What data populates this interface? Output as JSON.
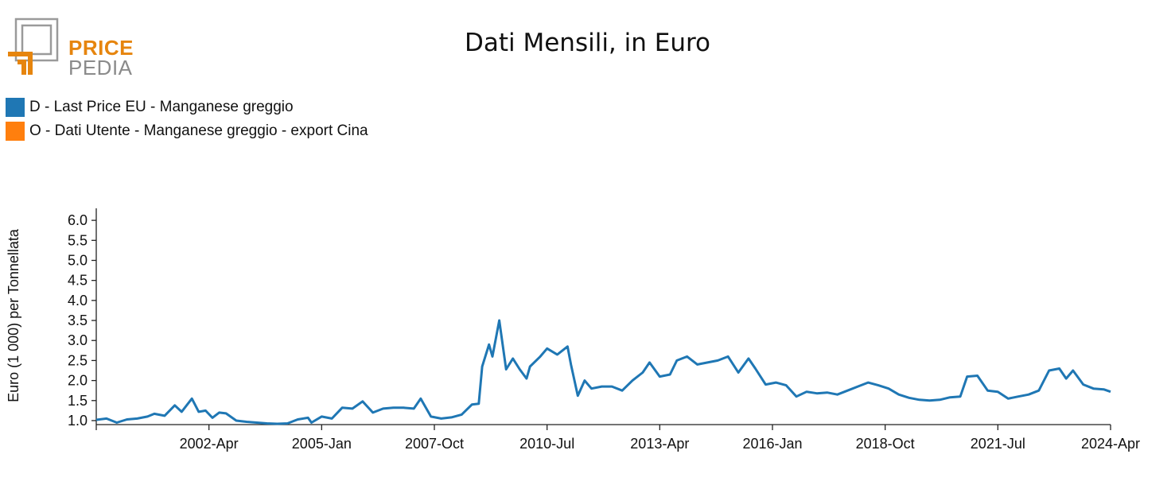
{
  "logo": {
    "line1": "PRICE",
    "line2": "PEDIA"
  },
  "colors": {
    "series_blue": "#1f77b4",
    "series_orange": "#ff7f0e",
    "logo_orange": "#e6850e",
    "logo_gray": "#8b8b8b"
  },
  "chart_data": {
    "type": "line",
    "title": "Dati Mensili, in Euro",
    "xlabel": "",
    "ylabel": "Euro (1 000) per Tonnellata",
    "x_start": "1999-07",
    "x_end": "2024-04",
    "x_ticks": [
      "2002-Apr",
      "2005-Jan",
      "2007-Oct",
      "2010-Jul",
      "2013-Apr",
      "2016-Jan",
      "2018-Oct",
      "2021-Jul",
      "2024-Apr"
    ],
    "y_ticks": [
      "1.0",
      "1.5",
      "2.0",
      "2.5",
      "3.0",
      "3.5",
      "4.0",
      "4.5",
      "5.0",
      "5.5",
      "6.0"
    ],
    "ylim": [
      0.9,
      6.3
    ],
    "legend_position": "top-left",
    "grid": false,
    "series": [
      {
        "name": "D - Last Price EU - Manganese greggio",
        "color": "#1f77b4",
        "points": [
          [
            "1999-07",
            1.02
          ],
          [
            "1999-10",
            1.05
          ],
          [
            "2000-01",
            0.95
          ],
          [
            "2000-04",
            1.03
          ],
          [
            "2000-07",
            1.05
          ],
          [
            "2000-10",
            1.1
          ],
          [
            "2000-12",
            1.17
          ],
          [
            "2001-03",
            1.12
          ],
          [
            "2001-06",
            1.38
          ],
          [
            "2001-08",
            1.22
          ],
          [
            "2001-11",
            1.55
          ],
          [
            "2002-01",
            1.22
          ],
          [
            "2002-03",
            1.25
          ],
          [
            "2002-05",
            1.07
          ],
          [
            "2002-07",
            1.2
          ],
          [
            "2002-09",
            1.18
          ],
          [
            "2002-12",
            1.0
          ],
          [
            "2003-03",
            0.97
          ],
          [
            "2003-06",
            0.95
          ],
          [
            "2003-09",
            0.93
          ],
          [
            "2003-12",
            0.92
          ],
          [
            "2004-03",
            0.93
          ],
          [
            "2004-06",
            1.03
          ],
          [
            "2004-09",
            1.07
          ],
          [
            "2004-10",
            0.95
          ],
          [
            "2005-01",
            1.1
          ],
          [
            "2005-04",
            1.05
          ],
          [
            "2005-07",
            1.32
          ],
          [
            "2005-10",
            1.3
          ],
          [
            "2006-01",
            1.48
          ],
          [
            "2006-04",
            1.2
          ],
          [
            "2006-07",
            1.3
          ],
          [
            "2006-10",
            1.32
          ],
          [
            "2007-01",
            1.32
          ],
          [
            "2007-04",
            1.3
          ],
          [
            "2007-06",
            1.55
          ],
          [
            "2007-09",
            1.1
          ],
          [
            "2007-12",
            1.05
          ],
          [
            "2008-03",
            1.08
          ],
          [
            "2008-06",
            1.15
          ],
          [
            "2008-09",
            1.4
          ],
          [
            "2008-11",
            1.42
          ],
          [
            "2008-12",
            2.35
          ],
          [
            "2009-02",
            2.9
          ],
          [
            "2009-03",
            2.6
          ],
          [
            "2009-05",
            3.5
          ],
          [
            "2009-07",
            2.28
          ],
          [
            "2009-09",
            2.55
          ],
          [
            "2009-11",
            2.28
          ],
          [
            "2010-01",
            2.05
          ],
          [
            "2010-02",
            2.35
          ],
          [
            "2010-05",
            2.6
          ],
          [
            "2010-07",
            2.8
          ],
          [
            "2010-10",
            2.65
          ],
          [
            "2011-01",
            2.85
          ],
          [
            "2011-02",
            2.4
          ],
          [
            "2011-04",
            1.62
          ],
          [
            "2011-06",
            2.0
          ],
          [
            "2011-08",
            1.8
          ],
          [
            "2011-11",
            1.85
          ],
          [
            "2012-02",
            1.85
          ],
          [
            "2012-05",
            1.75
          ],
          [
            "2012-08",
            2.0
          ],
          [
            "2012-11",
            2.2
          ],
          [
            "2013-01",
            2.45
          ],
          [
            "2013-04",
            2.1
          ],
          [
            "2013-07",
            2.15
          ],
          [
            "2013-09",
            2.5
          ],
          [
            "2013-12",
            2.6
          ],
          [
            "2014-03",
            2.4
          ],
          [
            "2014-06",
            2.45
          ],
          [
            "2014-09",
            2.5
          ],
          [
            "2014-12",
            2.6
          ],
          [
            "2015-03",
            2.2
          ],
          [
            "2015-06",
            2.55
          ],
          [
            "2015-08",
            2.3
          ],
          [
            "2015-11",
            1.9
          ],
          [
            "2016-02",
            1.95
          ],
          [
            "2016-05",
            1.88
          ],
          [
            "2016-08",
            1.6
          ],
          [
            "2016-11",
            1.72
          ],
          [
            "2017-02",
            1.68
          ],
          [
            "2017-05",
            1.7
          ],
          [
            "2017-08",
            1.65
          ],
          [
            "2017-11",
            1.75
          ],
          [
            "2018-02",
            1.85
          ],
          [
            "2018-05",
            1.95
          ],
          [
            "2018-08",
            1.88
          ],
          [
            "2018-11",
            1.8
          ],
          [
            "2019-02",
            1.65
          ],
          [
            "2019-05",
            1.57
          ],
          [
            "2019-08",
            1.52
          ],
          [
            "2019-11",
            1.5
          ],
          [
            "2020-02",
            1.52
          ],
          [
            "2020-05",
            1.58
          ],
          [
            "2020-08",
            1.6
          ],
          [
            "2020-10",
            2.1
          ],
          [
            "2021-01",
            2.12
          ],
          [
            "2021-04",
            1.75
          ],
          [
            "2021-07",
            1.72
          ],
          [
            "2021-10",
            1.55
          ],
          [
            "2022-01",
            1.6
          ],
          [
            "2022-04",
            1.65
          ],
          [
            "2022-07",
            1.75
          ],
          [
            "2022-10",
            2.25
          ],
          [
            "2023-01",
            2.3
          ],
          [
            "2023-03",
            2.05
          ],
          [
            "2023-05",
            2.25
          ],
          [
            "2023-08",
            1.9
          ],
          [
            "2023-11",
            1.8
          ],
          [
            "2024-02",
            1.78
          ],
          [
            "2024-04",
            1.72
          ]
        ]
      },
      {
        "name": "O - Dati Utente - Manganese greggio - export Cina",
        "color": "#ff7f0e",
        "points": []
      }
    ]
  }
}
